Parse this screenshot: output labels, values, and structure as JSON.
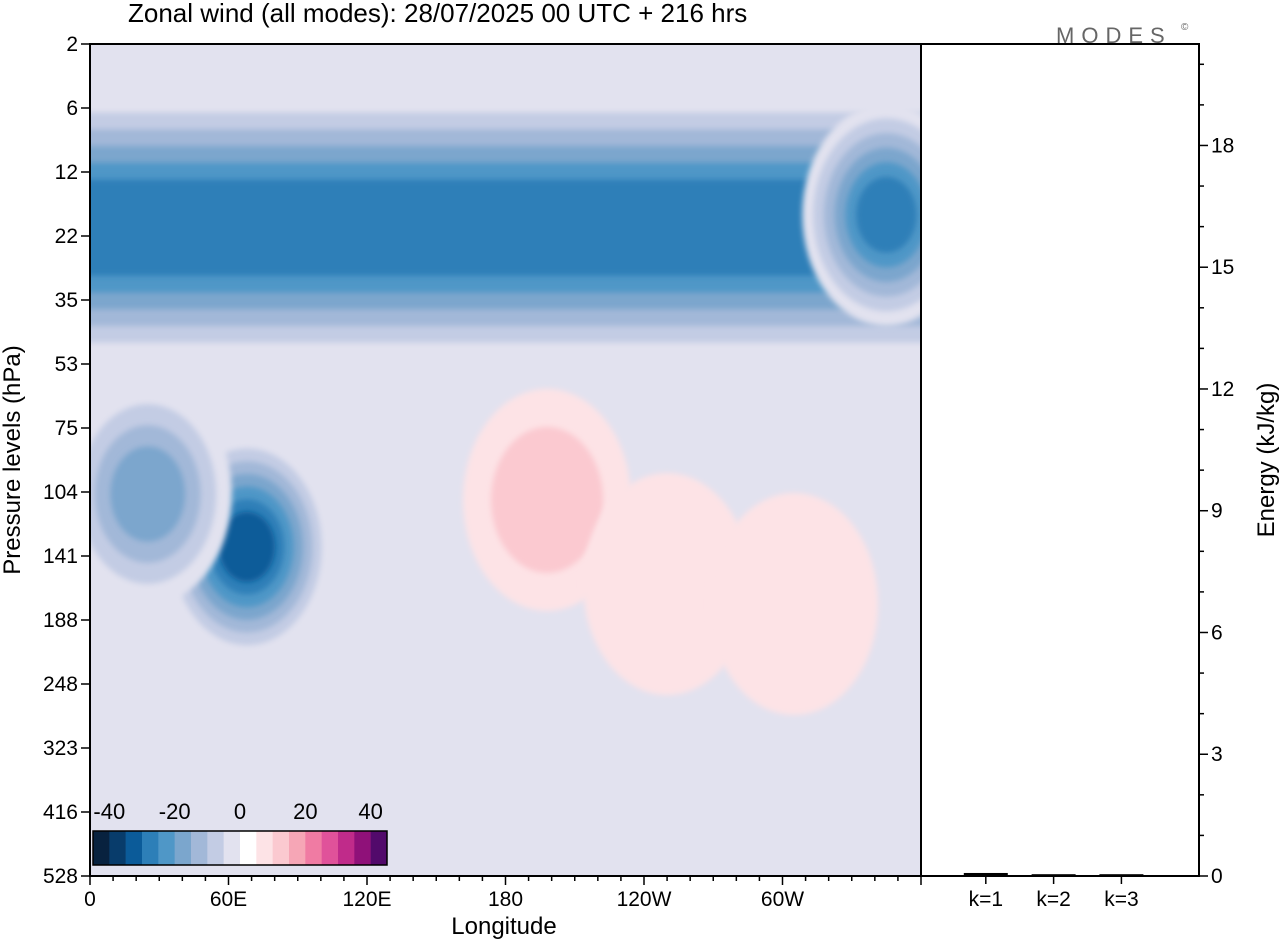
{
  "chart_data": [
    {
      "type": "heatmap",
      "title": "Zonal wind (all modes):  28/07/2025  00 UTC  + 216 hrs",
      "xlabel": "Longitude",
      "ylabel": "Pressure levels (hPa)",
      "x_ticks": [
        "0",
        "60E",
        "120E",
        "180",
        "120W",
        "60W"
      ],
      "x_tick_degrees": [
        0,
        60,
        120,
        180,
        240,
        300
      ],
      "x_range_degrees": [
        0,
        360
      ],
      "y_levels_hpa": [
        "2",
        "6",
        "12",
        "22",
        "35",
        "53",
        "75",
        "104",
        "141",
        "188",
        "248",
        "323",
        "416",
        "528"
      ],
      "colorbar": {
        "tick_labels": [
          "-40",
          "-20",
          "0",
          "20",
          "40"
        ],
        "tick_values": [
          -40,
          -20,
          0,
          20,
          40
        ],
        "range": [
          -45,
          45
        ],
        "bins": 18,
        "colors": [
          "#08223f",
          "#083c6b",
          "#0b5b99",
          "#2d7fb8",
          "#4f97c7",
          "#7ba6cd",
          "#a2b8d8",
          "#c3cce4",
          "#e2e2ef",
          "#ffffff",
          "#fde3e6",
          "#fbc9d0",
          "#f6a6b6",
          "#f07ba3",
          "#e0529a",
          "#c02b8a",
          "#8f1179",
          "#520a6b"
        ]
      },
      "features": [
        {
          "kind": "band",
          "description": "easterly stratospheric jet",
          "levels_hpa": [
            8,
            40
          ],
          "value": -28
        },
        {
          "kind": "blob",
          "lon": 68,
          "level_hpa": 135,
          "value": -33
        },
        {
          "kind": "blob",
          "lon": 25,
          "level_hpa": 105,
          "value": -20
        },
        {
          "kind": "blob",
          "lon": 198,
          "level_hpa": 108,
          "value": 9
        },
        {
          "kind": "blob",
          "lon": 250,
          "level_hpa": 160,
          "value": 5
        },
        {
          "kind": "blob",
          "lon": 305,
          "level_hpa": 175,
          "value": 3
        },
        {
          "kind": "blob",
          "lon": 345,
          "level_hpa": 18,
          "value": -30
        }
      ]
    },
    {
      "type": "bar",
      "ylabel": "Energy (kJ/kg)",
      "categories": [
        "k=1",
        "k=2",
        "k=3"
      ],
      "values": [
        0.05,
        0.02,
        0.02
      ],
      "ylim": [
        0,
        20.5
      ],
      "y_ticks": [
        "0",
        "3",
        "6",
        "9",
        "12",
        "15",
        "18"
      ],
      "y_tick_values": [
        0,
        3,
        6,
        9,
        12,
        15,
        18
      ]
    }
  ],
  "logo": "MODES",
  "logo_mark": "©"
}
